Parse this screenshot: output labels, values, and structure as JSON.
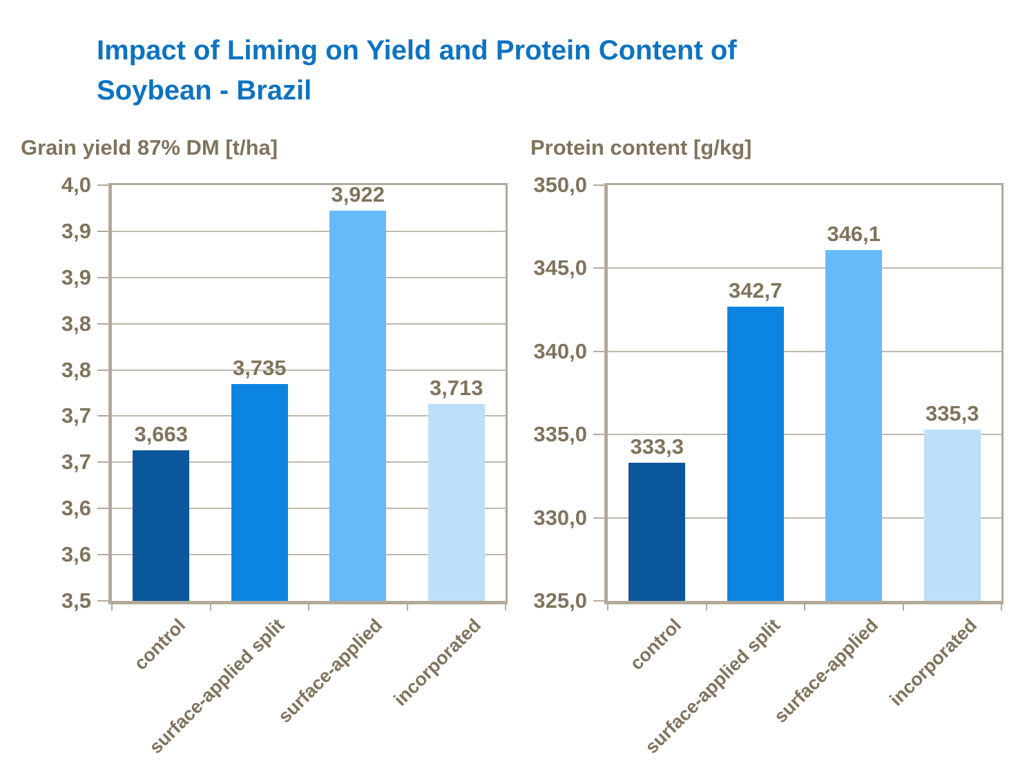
{
  "header": {
    "title_line1": "Impact of Liming on Yield and Protein Content of",
    "title_line2": "Soybean - Brazil"
  },
  "colors": {
    "title_blue": "#0d73c1",
    "axis_text": "#80735c",
    "frame": "#b2a99a",
    "grid": "#c0b8aa",
    "bars": [
      "#0b579c",
      "#0c85e0",
      "#67baf9",
      "#bcdffb"
    ]
  },
  "chart_data": [
    {
      "type": "bar",
      "title": "Grain yield 87% DM [t/ha]",
      "categories": [
        "control",
        "surface-applied split",
        "surface-applied",
        "incorporated"
      ],
      "values": [
        3.663,
        3.735,
        3.922,
        3.713
      ],
      "data_labels": [
        "3,663",
        "3,735",
        "3,922",
        "3,713"
      ],
      "ylim": [
        3.5,
        3.95
      ],
      "ytick_labels": [
        "4,0",
        "3,9",
        "3,9",
        "3,8",
        "3,8",
        "3,7",
        "3,7",
        "3,6",
        "3,6",
        "3,5"
      ],
      "grid": true,
      "legend": "none"
    },
    {
      "type": "bar",
      "title": "Protein content [g/kg]",
      "categories": [
        "control",
        "surface-applied split",
        "surface-applied",
        "incorporated"
      ],
      "values": [
        333.3,
        342.7,
        346.1,
        335.3
      ],
      "data_labels": [
        "333,3",
        "342,7",
        "346,1",
        "335,3"
      ],
      "ylim": [
        325,
        350
      ],
      "ytick_labels": [
        "350,0",
        "345,0",
        "340,0",
        "335,0",
        "330,0",
        "325,0"
      ],
      "grid": true,
      "legend": "none"
    }
  ]
}
